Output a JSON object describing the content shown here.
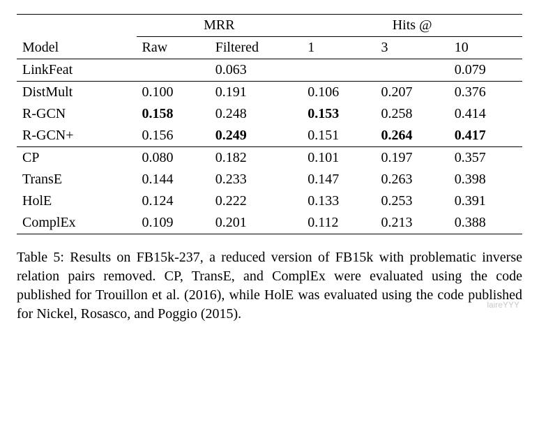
{
  "table": {
    "group_headers": {
      "mrr": "MRR",
      "hits": "Hits @"
    },
    "col_headers": {
      "model": "Model",
      "raw": "Raw",
      "filtered": "Filtered",
      "h1": "1",
      "h3": "3",
      "h10": "10"
    },
    "sections": [
      {
        "rows": [
          {
            "model": "LinkFeat",
            "raw": "",
            "filtered": "0.063",
            "h1": "",
            "h3": "",
            "h10": "0.079",
            "bold": {
              "raw": false,
              "filtered": false,
              "h1": false,
              "h3": false,
              "h10": false
            }
          }
        ]
      },
      {
        "rows": [
          {
            "model": "DistMult",
            "raw": "0.100",
            "filtered": "0.191",
            "h1": "0.106",
            "h3": "0.207",
            "h10": "0.376",
            "bold": {
              "raw": false,
              "filtered": false,
              "h1": false,
              "h3": false,
              "h10": false
            }
          },
          {
            "model": "R-GCN",
            "raw": "0.158",
            "filtered": "0.248",
            "h1": "0.153",
            "h3": "0.258",
            "h10": "0.414",
            "bold": {
              "raw": true,
              "filtered": false,
              "h1": true,
              "h3": false,
              "h10": false
            }
          },
          {
            "model": "R-GCN+",
            "raw": "0.156",
            "filtered": "0.249",
            "h1": "0.151",
            "h3": "0.264",
            "h10": "0.417",
            "bold": {
              "raw": false,
              "filtered": true,
              "h1": false,
              "h3": true,
              "h10": true
            }
          }
        ]
      },
      {
        "rows": [
          {
            "model": "CP",
            "raw": "0.080",
            "filtered": "0.182",
            "h1": "0.101",
            "h3": "0.197",
            "h10": "0.357",
            "bold": {
              "raw": false,
              "filtered": false,
              "h1": false,
              "h3": false,
              "h10": false
            }
          },
          {
            "model": "TransE",
            "raw": "0.144",
            "filtered": "0.233",
            "h1": "0.147",
            "h3": "0.263",
            "h10": "0.398",
            "bold": {
              "raw": false,
              "filtered": false,
              "h1": false,
              "h3": false,
              "h10": false
            }
          },
          {
            "model": "HolE",
            "raw": "0.124",
            "filtered": "0.222",
            "h1": "0.133",
            "h3": "0.253",
            "h10": "0.391",
            "bold": {
              "raw": false,
              "filtered": false,
              "h1": false,
              "h3": false,
              "h10": false
            }
          },
          {
            "model": "ComplEx",
            "raw": "0.109",
            "filtered": "0.201",
            "h1": "0.112",
            "h3": "0.213",
            "h10": "0.388",
            "bold": {
              "raw": false,
              "filtered": false,
              "h1": false,
              "h3": false,
              "h10": false
            }
          }
        ]
      }
    ]
  },
  "caption": "Table 5: Results on FB15k-237, a reduced version of FB15k with problematic inverse relation pairs removed. CP, TransE, and ComplEx were evaluated using the code published for Trouillon et al. (2016), while HolE was evaluated using the code published for Nickel, Rosasco, and Poggio (2015).",
  "watermark": "laireYYY",
  "style": {
    "font_family": "Times New Roman",
    "font_size_pt": 20,
    "text_color": "#000000",
    "background_color": "#ffffff",
    "rule_color": "#000000",
    "bold_weight": "bold",
    "watermark_color": "#c9c9c9"
  }
}
